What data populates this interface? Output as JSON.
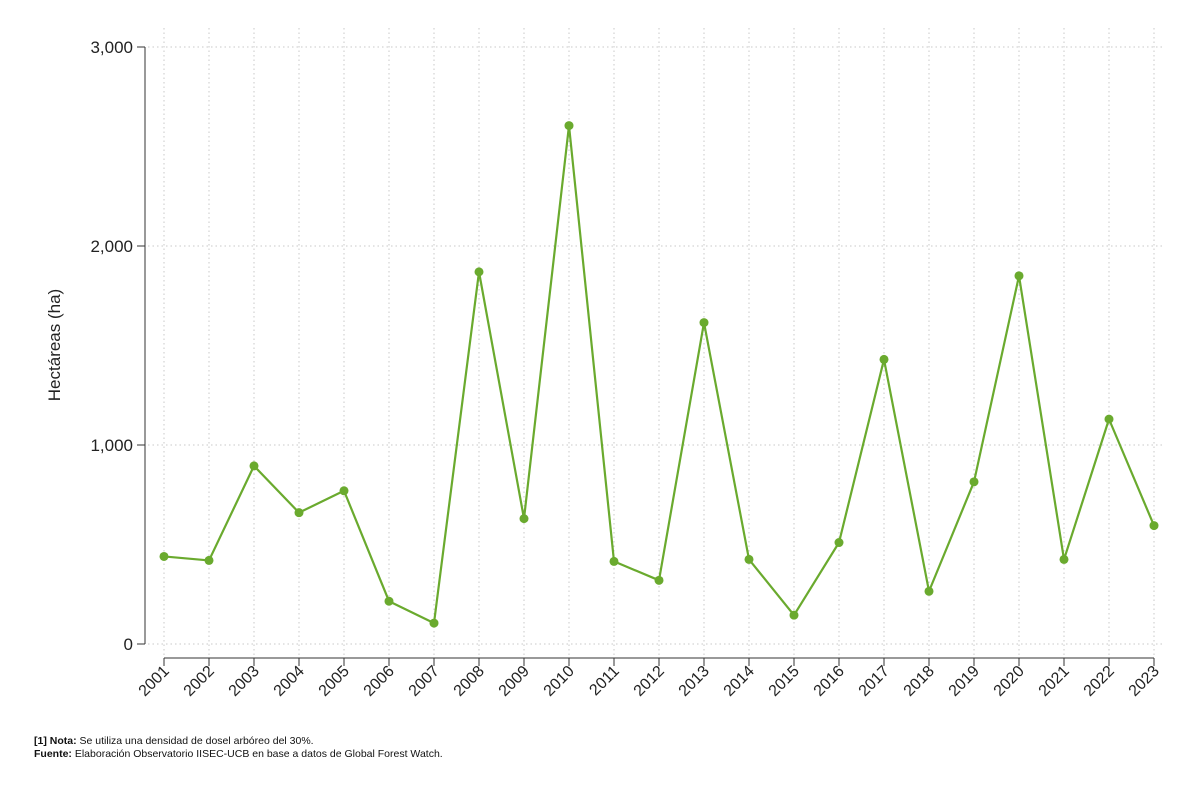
{
  "chart_data": {
    "type": "line",
    "title": "",
    "xlabel": "",
    "ylabel": "Hectáreas (ha)",
    "categories": [
      "2001",
      "2002",
      "2003",
      "2004",
      "2005",
      "2006",
      "2007",
      "2008",
      "2009",
      "2010",
      "2011",
      "2012",
      "2013",
      "2014",
      "2015",
      "2016",
      "2017",
      "2018",
      "2019",
      "2020",
      "2021",
      "2022",
      "2023"
    ],
    "series": [
      {
        "values": [
          440,
          420,
          895,
          660,
          770,
          215,
          105,
          1870,
          630,
          2605,
          415,
          320,
          1615,
          425,
          145,
          510,
          1430,
          265,
          815,
          1850,
          425,
          1130,
          595
        ]
      }
    ],
    "yticks": [
      "0",
      "1,000",
      "2,000",
      "3,000"
    ],
    "ytick_values": [
      0,
      1000,
      2000,
      3000
    ],
    "ylim": [
      0,
      3000
    ],
    "grid": true,
    "line_color": "#6aaa2e"
  },
  "notes": {
    "note_label": "[1] Nota:",
    "note_text": " Se utiliza una densidad de dosel arbóreo del 30%.",
    "source_label": "Fuente:",
    "source_text": " Elaboración Observatorio IISEC-UCB en base a datos de Global Forest Watch."
  }
}
